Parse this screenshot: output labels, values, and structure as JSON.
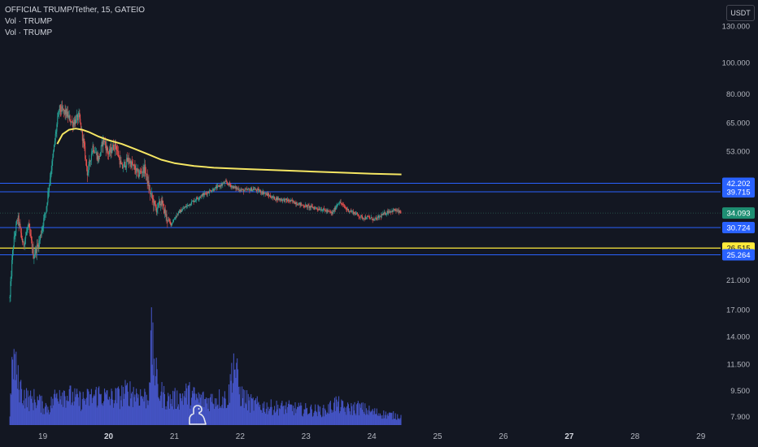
{
  "header": {
    "symbol_title": "OFFICIAL TRUMP/Tether, 15, GATEIO",
    "indicators": [
      "Vol · TRUMP",
      "Vol · TRUMP"
    ]
  },
  "toolbar": {
    "currency_label": "USDT"
  },
  "logo": {
    "icon": "tradingview-dino-icon"
  },
  "colors": {
    "background": "#131722",
    "up": "#26a69a",
    "down": "#ef5350",
    "volume": "#4a5bd6",
    "level_line": "#2962ff",
    "vwap_line": "#f5e663",
    "yellow_level": "#ffeb3b",
    "last_price": "#1e8f73"
  },
  "chart_data": {
    "type": "candlestick",
    "y_axis": {
      "scale": "log",
      "range": [
        7.4,
        140
      ],
      "tick_labels": [
        "130.000",
        "100.000",
        "80.000",
        "65.000",
        "53.000",
        "21.000",
        "17.000",
        "14.000",
        "11.500",
        "9.500",
        "7.900"
      ]
    },
    "x_axis": {
      "range": [
        18.35,
        29.3
      ],
      "tick_labels": [
        "19",
        "20",
        "21",
        "22",
        "23",
        "24",
        "25",
        "26",
        "27",
        "28",
        "29"
      ],
      "bold_ticks": [
        "20",
        "27"
      ]
    },
    "price_levels": [
      {
        "label": "42.202",
        "value": 42.202,
        "kind": "blue"
      },
      {
        "label": "39.715",
        "value": 39.715,
        "kind": "blue"
      },
      {
        "label": "34.093",
        "value": 34.093,
        "kind": "last"
      },
      {
        "label": "30.724",
        "value": 30.724,
        "kind": "blue"
      },
      {
        "label": "26.515",
        "value": 26.515,
        "kind": "yellow"
      },
      {
        "label": "25.264",
        "value": 25.264,
        "kind": "blue"
      }
    ],
    "price_path": [
      [
        18.5,
        18.5
      ],
      [
        18.55,
        27
      ],
      [
        18.62,
        33
      ],
      [
        18.7,
        27
      ],
      [
        18.78,
        31
      ],
      [
        18.86,
        25
      ],
      [
        18.95,
        28
      ],
      [
        19.05,
        35
      ],
      [
        19.15,
        50
      ],
      [
        19.25,
        72
      ],
      [
        19.35,
        70
      ],
      [
        19.45,
        65
      ],
      [
        19.55,
        68
      ],
      [
        19.62,
        56
      ],
      [
        19.68,
        45
      ],
      [
        19.76,
        55
      ],
      [
        19.85,
        50
      ],
      [
        19.92,
        58
      ],
      [
        20.0,
        52
      ],
      [
        20.1,
        56
      ],
      [
        20.2,
        47
      ],
      [
        20.3,
        50
      ],
      [
        20.45,
        45
      ],
      [
        20.55,
        47
      ],
      [
        20.62,
        40
      ],
      [
        20.72,
        35
      ],
      [
        20.8,
        37
      ],
      [
        20.88,
        33
      ],
      [
        20.95,
        31.5
      ],
      [
        21.05,
        34
      ],
      [
        21.2,
        36
      ],
      [
        21.35,
        38
      ],
      [
        21.5,
        39.5
      ],
      [
        21.65,
        41
      ],
      [
        21.78,
        42.5
      ],
      [
        21.9,
        41
      ],
      [
        22.05,
        40
      ],
      [
        22.2,
        40.5
      ],
      [
        22.35,
        39.5
      ],
      [
        22.5,
        38
      ],
      [
        22.65,
        37.5
      ],
      [
        22.8,
        37
      ],
      [
        22.95,
        36
      ],
      [
        23.1,
        35.5
      ],
      [
        23.25,
        35
      ],
      [
        23.4,
        34
      ],
      [
        23.5,
        37
      ],
      [
        23.62,
        35
      ],
      [
        23.75,
        34
      ],
      [
        23.85,
        33
      ],
      [
        23.95,
        33
      ],
      [
        24.05,
        32.5
      ],
      [
        24.15,
        33.5
      ],
      [
        24.25,
        34.5
      ],
      [
        24.35,
        34.8
      ],
      [
        24.45,
        34.1
      ]
    ],
    "vwap": [
      [
        19.22,
        56
      ],
      [
        19.3,
        60
      ],
      [
        19.4,
        62
      ],
      [
        19.5,
        62.5
      ],
      [
        19.6,
        62
      ],
      [
        19.7,
        61
      ],
      [
        19.85,
        59
      ],
      [
        20.0,
        57.5
      ],
      [
        20.2,
        56
      ],
      [
        20.4,
        54
      ],
      [
        20.6,
        52
      ],
      [
        20.8,
        50
      ],
      [
        21.0,
        48.8
      ],
      [
        21.3,
        47.8
      ],
      [
        21.6,
        47.2
      ],
      [
        22.0,
        46.8
      ],
      [
        22.5,
        46.4
      ],
      [
        23.0,
        46.0
      ],
      [
        23.5,
        45.6
      ],
      [
        24.0,
        45.2
      ],
      [
        24.45,
        45.0
      ]
    ],
    "volume_profile": [
      [
        18.5,
        0.15
      ],
      [
        18.55,
        0.78
      ],
      [
        18.62,
        0.5
      ],
      [
        18.7,
        0.35
      ],
      [
        18.8,
        0.28
      ],
      [
        18.9,
        0.3
      ],
      [
        19.0,
        0.22
      ],
      [
        19.1,
        0.2
      ],
      [
        19.25,
        0.4
      ],
      [
        19.4,
        0.33
      ],
      [
        19.55,
        0.28
      ],
      [
        19.7,
        0.3
      ],
      [
        19.85,
        0.35
      ],
      [
        20.0,
        0.3
      ],
      [
        20.15,
        0.32
      ],
      [
        20.3,
        0.38
      ],
      [
        20.45,
        0.35
      ],
      [
        20.6,
        0.3
      ],
      [
        20.65,
        0.95
      ],
      [
        20.75,
        0.4
      ],
      [
        20.9,
        0.28
      ],
      [
        21.05,
        0.3
      ],
      [
        21.2,
        0.36
      ],
      [
        21.35,
        0.3
      ],
      [
        21.5,
        0.28
      ],
      [
        21.65,
        0.3
      ],
      [
        21.82,
        0.3
      ],
      [
        21.9,
        0.75
      ],
      [
        22.0,
        0.35
      ],
      [
        22.15,
        0.25
      ],
      [
        22.3,
        0.22
      ],
      [
        22.5,
        0.2
      ],
      [
        22.7,
        0.2
      ],
      [
        22.9,
        0.18
      ],
      [
        23.1,
        0.17
      ],
      [
        23.3,
        0.16
      ],
      [
        23.45,
        0.25
      ],
      [
        23.6,
        0.18
      ],
      [
        23.8,
        0.2
      ],
      [
        24.0,
        0.15
      ],
      [
        24.2,
        0.12
      ],
      [
        24.45,
        0.1
      ]
    ]
  }
}
